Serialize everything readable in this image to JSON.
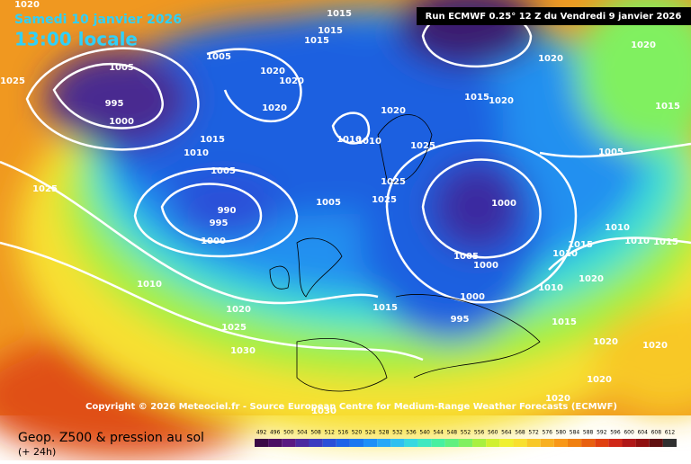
{
  "header": {
    "date": "Samedi 10 janvier 2026",
    "time": "13:00 locale",
    "run": "Run ECMWF 0.25° 12 Z du Vendredi 9 janvier 2026"
  },
  "copyright": "Copyright © 2026 Meteociel.fr - Source European Centre for Medium-Range Weather Forecasts (ECMWF)",
  "footer": {
    "title": "Geop. Z500 & pression au sol",
    "lead": "(+ 24h)"
  },
  "isobar_labels": [
    1020,
    1025,
    1005,
    995,
    1000,
    1025,
    990,
    995,
    1000,
    1010,
    1020,
    1025,
    1030,
    1005,
    1010,
    1015,
    1005,
    1020,
    1020,
    1020,
    1015,
    1015,
    1015,
    1020,
    1010,
    1010,
    1025,
    1025,
    1025,
    1005,
    1000,
    1005,
    1000,
    1000,
    995,
    1015,
    1015,
    1020,
    1020,
    1020,
    1005,
    1010,
    1015,
    1010,
    1010,
    1015,
    1010,
    1020,
    1015,
    1020,
    1020,
    1020,
    1020,
    1030,
    1015
  ],
  "legend": {
    "labels": [
      492,
      496,
      500,
      504,
      508,
      512,
      516,
      520,
      524,
      528,
      532,
      536,
      540,
      544,
      548,
      552,
      556,
      560,
      564,
      568,
      572,
      576,
      580,
      584,
      588,
      592,
      596,
      600,
      604,
      608,
      612
    ],
    "colors": [
      "#3b0a45",
      "#4b0f63",
      "#5a1a82",
      "#4b2aa0",
      "#3a3cc0",
      "#2a50d8",
      "#1e64e8",
      "#1a78f0",
      "#1e90f8",
      "#28a8f8",
      "#30c0f0",
      "#38d8e0",
      "#40e8c0",
      "#48f0a0",
      "#60f080",
      "#80f060",
      "#a8f040",
      "#d0f030",
      "#f0f030",
      "#f8e030",
      "#f8c828",
      "#f8b020",
      "#f89818",
      "#f08010",
      "#e86010",
      "#e04010",
      "#d02818",
      "#b01818",
      "#901010",
      "#601010",
      "#303030"
    ]
  }
}
